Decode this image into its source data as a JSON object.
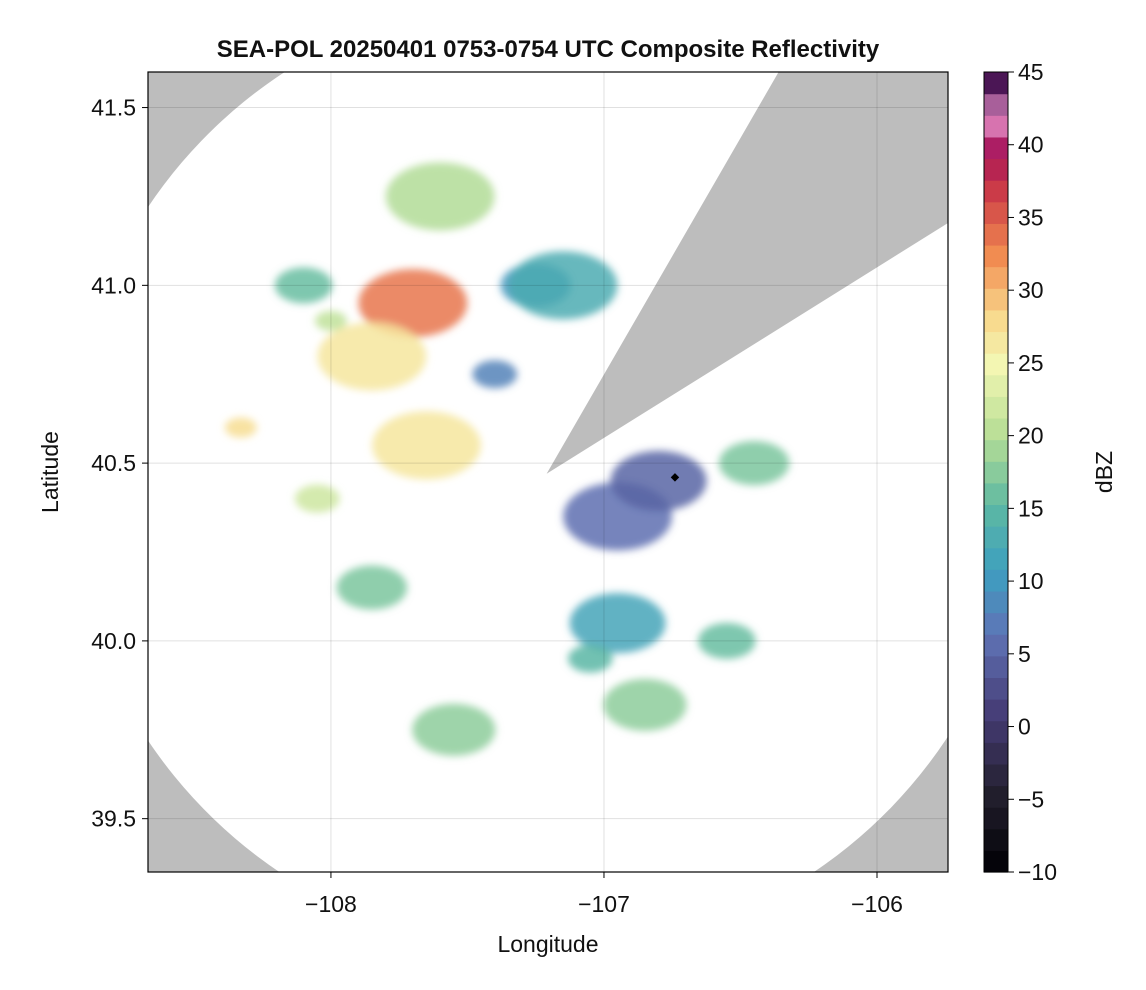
{
  "chart_data": {
    "type": "heatmap",
    "title": "SEA-POL 20250401 0753-0754 UTC Composite Reflectivity",
    "xlabel": "Longitude",
    "ylabel": "Latitude",
    "xlim": [
      -108.67,
      -105.74
    ],
    "ylim": [
      39.35,
      41.6
    ],
    "xticks": [
      -108,
      -107,
      -106
    ],
    "xtick_labels": [
      "−108",
      "−107",
      "−106"
    ],
    "yticks": [
      39.5,
      40.0,
      40.5,
      41.0,
      41.5
    ],
    "ytick_labels": [
      "39.5",
      "40.0",
      "40.5",
      "41.0",
      "41.5"
    ],
    "grid": true,
    "background_color": "#bdbdbd",
    "radar": {
      "center": [
        -107.21,
        40.47
      ],
      "range_km": 150,
      "blocked_sector_deg": [
        30,
        58
      ],
      "site_marker": [
        -106.74,
        40.46
      ]
    },
    "colorbar": {
      "label": "dBZ",
      "min": -10,
      "max": 45,
      "step": 1.5,
      "ticks": [
        -10,
        -5,
        0,
        5,
        10,
        15,
        20,
        25,
        30,
        35,
        40,
        45
      ],
      "tick_labels": [
        "−10",
        "−5",
        "0",
        "5",
        "10",
        "15",
        "20",
        "25",
        "30",
        "35",
        "40",
        "45"
      ],
      "stops": [
        [
          0,
          "#000004"
        ],
        [
          0.1,
          "#231f2e"
        ],
        [
          0.2,
          "#463d76"
        ],
        [
          0.3,
          "#5f73b6"
        ],
        [
          0.38,
          "#3d9fc0"
        ],
        [
          0.46,
          "#5cb8a3"
        ],
        [
          0.55,
          "#b6de95"
        ],
        [
          0.64,
          "#f3f6b3"
        ],
        [
          0.7,
          "#f8d98c"
        ],
        [
          0.78,
          "#f1894f"
        ],
        [
          0.86,
          "#cb3a48"
        ],
        [
          0.91,
          "#a6135a"
        ],
        [
          0.95,
          "#e58fc8"
        ],
        [
          1.0,
          "#3c0a4a"
        ]
      ]
    },
    "echo_regions": [
      {
        "lon": -108.0,
        "lat": 40.9,
        "dbz": 21
      },
      {
        "lon": -107.7,
        "lat": 40.95,
        "dbz": 34
      },
      {
        "lon": -107.85,
        "lat": 40.8,
        "dbz": 27
      },
      {
        "lon": -108.33,
        "lat": 40.6,
        "dbz": 28
      },
      {
        "lon": -107.65,
        "lat": 40.55,
        "dbz": 27
      },
      {
        "lon": -107.6,
        "lat": 41.25,
        "dbz": 20
      },
      {
        "lon": -108.05,
        "lat": 40.4,
        "dbz": 22
      },
      {
        "lon": -108.1,
        "lat": 41.0,
        "dbz": 16
      },
      {
        "lon": -107.25,
        "lat": 41.0,
        "dbz": 10
      },
      {
        "lon": -107.15,
        "lat": 41.0,
        "dbz": 13
      },
      {
        "lon": -107.85,
        "lat": 40.15,
        "dbz": 17
      },
      {
        "lon": -106.95,
        "lat": 40.35,
        "dbz": 6
      },
      {
        "lon": -106.95,
        "lat": 40.05,
        "dbz": 12
      },
      {
        "lon": -107.05,
        "lat": 39.95,
        "dbz": 15
      },
      {
        "lon": -106.45,
        "lat": 40.5,
        "dbz": 17
      },
      {
        "lon": -106.55,
        "lat": 40.0,
        "dbz": 16
      },
      {
        "lon": -107.55,
        "lat": 39.75,
        "dbz": 18
      },
      {
        "lon": -106.85,
        "lat": 39.82,
        "dbz": 18
      },
      {
        "lon": -106.8,
        "lat": 40.45,
        "dbz": 5
      },
      {
        "lon": -107.4,
        "lat": 40.75,
        "dbz": 8
      }
    ]
  }
}
